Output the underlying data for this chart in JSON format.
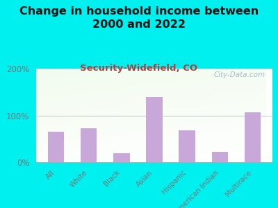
{
  "title": "Change in household income between\n2000 and 2022",
  "subtitle": "Security-Widefield, CO",
  "categories": [
    "All",
    "White",
    "Black",
    "Asian",
    "Hispanic",
    "American Indian",
    "Multirace"
  ],
  "values": [
    65,
    72,
    20,
    140,
    68,
    22,
    107
  ],
  "bar_color": "#c8a8d8",
  "background_outer": "#00f0f0",
  "ylim": [
    0,
    200
  ],
  "yticks": [
    0,
    100,
    200
  ],
  "ytick_labels": [
    "0%",
    "100%",
    "200%"
  ],
  "title_fontsize": 11.5,
  "subtitle_fontsize": 9.5,
  "subtitle_color": "#b04040",
  "title_color": "#111111",
  "tick_color": "#777777",
  "watermark": "City-Data.com",
  "watermark_fontsize": 7.5,
  "watermark_color": "#aabbcc",
  "grid_color": "#cccccc",
  "bottom_spine_color": "#aaaaaa"
}
